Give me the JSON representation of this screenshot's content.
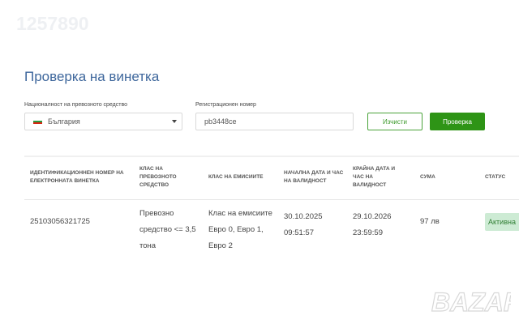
{
  "watermark": "1257890",
  "title": "Проверка на винетка",
  "form": {
    "nationality_label": "Националност на превозното средство",
    "nationality_value": "България",
    "reg_label": "Регистрационен номер",
    "reg_value": "pb3448ce",
    "clear_label": "Изчисти",
    "check_label": "Проверка"
  },
  "table": {
    "headers": [
      "Идентификационнен номер на електронната винетка",
      "Клас на превозното средство",
      "Клас на емисиите",
      "Начална дата и час на валидност",
      "Крайна дата и час на валидност",
      "Сума",
      "Статус"
    ],
    "rows": [
      {
        "id": "25103056321725",
        "vehicle_class": "Превозно средство <= 3,5 тона",
        "emission_class": "Клас на емисиите Евро 0, Евро 1, Евро 2",
        "start": "30.10.2025 09:51:57",
        "end": "29.10.2026 23:59:59",
        "amount": "97 лв",
        "status": "Активна"
      }
    ]
  },
  "logo": "BAZAR",
  "colors": {
    "accent": "#2e9416",
    "title": "#3e679c",
    "status_bg": "#cdebd4"
  }
}
